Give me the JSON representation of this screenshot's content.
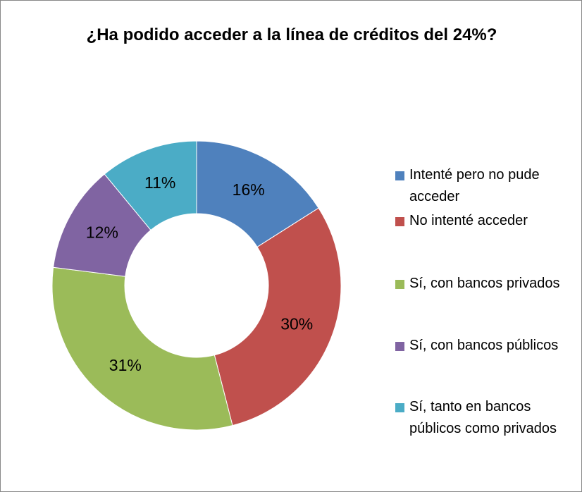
{
  "chart_data": {
    "type": "donut",
    "title": "¿Ha podido acceder a la línea de créditos del 24%?",
    "categories": [
      "Intenté pero no pude acceder",
      "No intenté acceder",
      "Sí, con bancos privados",
      "Sí, con bancos públicos",
      "Sí, tanto en bancos públicos como privados"
    ],
    "values": [
      16,
      30,
      31,
      12,
      11
    ],
    "value_labels": [
      "16%",
      "30%",
      "31%",
      "12%",
      "11%"
    ],
    "colors": [
      "#4f81bd",
      "#c0504d",
      "#9bbb59",
      "#8064a2",
      "#4bacc6"
    ],
    "legend": "right"
  }
}
